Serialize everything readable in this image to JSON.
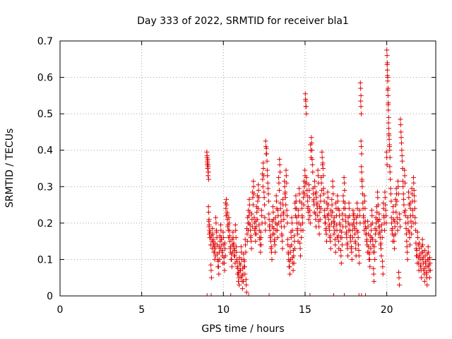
{
  "chart_data": {
    "type": "scatter",
    "title": "Day 333 of 2022, SRMTID for receiver bla1",
    "xlabel": "GPS time / hours",
    "ylabel": "SRMTID / TECUs",
    "xlim": [
      0,
      23
    ],
    "ylim": [
      0,
      0.7
    ],
    "xticks": [
      0,
      5,
      10,
      15,
      20
    ],
    "yticks": [
      0,
      0.1,
      0.2,
      0.3,
      0.4,
      0.5,
      0.6,
      0.7
    ],
    "xtick_labels": [
      "0",
      "5",
      "10",
      "15",
      "20"
    ],
    "ytick_labels": [
      "0",
      "0.1",
      "0.2",
      "0.3",
      "0.4",
      "0.5",
      "0.6",
      "0.7"
    ],
    "marker": "+",
    "marker_color": "#e00000",
    "grid": true,
    "series": [
      {
        "name": "SRMTID",
        "points": [
          [
            9.0,
            0.38
          ],
          [
            9.02,
            0.37
          ],
          [
            9.04,
            0.35
          ],
          [
            9.06,
            0.36
          ],
          [
            9.08,
            0.34
          ],
          [
            9.1,
            0.23
          ],
          [
            9.12,
            0.19
          ],
          [
            9.15,
            0.18
          ],
          [
            9.2,
            0.16
          ],
          [
            9.25,
            0.07
          ],
          [
            9.3,
            0.15
          ],
          [
            9.35,
            0.17
          ],
          [
            9.4,
            0.14
          ],
          [
            9.45,
            0.12
          ],
          [
            9.5,
            0.13
          ],
          [
            9.55,
            0.2
          ],
          [
            9.6,
            0.16
          ],
          [
            9.65,
            0.1
          ],
          [
            9.7,
            0.08
          ],
          [
            9.75,
            0.12
          ],
          [
            9.8,
            0.15
          ],
          [
            9.85,
            0.18
          ],
          [
            9.9,
            0.14
          ],
          [
            9.95,
            0.11
          ],
          [
            10.0,
            0.16
          ],
          [
            10.05,
            0.09
          ],
          [
            10.1,
            0.13
          ],
          [
            10.15,
            0.24
          ],
          [
            10.2,
            0.25
          ],
          [
            10.25,
            0.21
          ],
          [
            10.3,
            0.18
          ],
          [
            10.35,
            0.2
          ],
          [
            10.4,
            0.15
          ],
          [
            10.45,
            0.12
          ],
          [
            10.5,
            0.1
          ],
          [
            10.55,
            0.14
          ],
          [
            10.6,
            0.16
          ],
          [
            10.65,
            0.13
          ],
          [
            10.7,
            0.11
          ],
          [
            10.75,
            0.18
          ],
          [
            10.8,
            0.12
          ],
          [
            10.85,
            0.08
          ],
          [
            10.9,
            0.06
          ],
          [
            10.95,
            0.05
          ],
          [
            11.0,
            0.09
          ],
          [
            11.05,
            0.07
          ],
          [
            11.1,
            0.12
          ],
          [
            11.15,
            0.04
          ],
          [
            11.2,
            0.06
          ],
          [
            11.25,
            0.1
          ],
          [
            11.3,
            0.08
          ],
          [
            11.35,
            0.14
          ],
          [
            11.4,
            0.03
          ],
          [
            11.45,
            0.17
          ],
          [
            11.5,
            0.2
          ],
          [
            11.55,
            0.22
          ],
          [
            11.6,
            0.25
          ],
          [
            11.65,
            0.18
          ],
          [
            11.7,
            0.15
          ],
          [
            11.75,
            0.21
          ],
          [
            11.8,
            0.27
          ],
          [
            11.85,
            0.3
          ],
          [
            11.9,
            0.2
          ],
          [
            11.95,
            0.17
          ],
          [
            12.0,
            0.19
          ],
          [
            12.05,
            0.23
          ],
          [
            12.1,
            0.26
          ],
          [
            12.15,
            0.29
          ],
          [
            12.2,
            0.18
          ],
          [
            12.25,
            0.14
          ],
          [
            12.3,
            0.16
          ],
          [
            12.35,
            0.22
          ],
          [
            12.4,
            0.32
          ],
          [
            12.45,
            0.35
          ],
          [
            12.5,
            0.27
          ],
          [
            12.55,
            0.2
          ],
          [
            12.6,
            0.41
          ],
          [
            12.65,
            0.39
          ],
          [
            12.7,
            0.33
          ],
          [
            12.75,
            0.28
          ],
          [
            12.8,
            0.21
          ],
          [
            12.85,
            0.18
          ],
          [
            12.9,
            0.15
          ],
          [
            12.95,
            0.12
          ],
          [
            13.0,
            0.19
          ],
          [
            13.05,
            0.23
          ],
          [
            13.1,
            0.17
          ],
          [
            13.15,
            0.14
          ],
          [
            13.2,
            0.2
          ],
          [
            13.25,
            0.26
          ],
          [
            13.3,
            0.18
          ],
          [
            13.35,
            0.22
          ],
          [
            13.4,
            0.31
          ],
          [
            13.45,
            0.36
          ],
          [
            13.5,
            0.24
          ],
          [
            13.55,
            0.19
          ],
          [
            13.6,
            0.15
          ],
          [
            13.65,
            0.25
          ],
          [
            13.7,
            0.21
          ],
          [
            13.75,
            0.3
          ],
          [
            13.8,
            0.27
          ],
          [
            13.85,
            0.33
          ],
          [
            13.9,
            0.22
          ],
          [
            13.95,
            0.14
          ],
          [
            14.0,
            0.1
          ],
          [
            14.05,
            0.08
          ],
          [
            14.1,
            0.12
          ],
          [
            14.15,
            0.16
          ],
          [
            14.2,
            0.2
          ],
          [
            14.25,
            0.09
          ],
          [
            14.3,
            0.11
          ],
          [
            14.35,
            0.15
          ],
          [
            14.4,
            0.24
          ],
          [
            14.45,
            0.26
          ],
          [
            14.5,
            0.2
          ],
          [
            14.55,
            0.17
          ],
          [
            14.6,
            0.22
          ],
          [
            14.65,
            0.28
          ],
          [
            14.7,
            0.13
          ],
          [
            14.75,
            0.18
          ],
          [
            14.8,
            0.24
          ],
          [
            14.85,
            0.2
          ],
          [
            14.9,
            0.27
          ],
          [
            14.95,
            0.3
          ],
          [
            15.0,
            0.33
          ],
          [
            15.03,
            0.54
          ],
          [
            15.06,
            0.52
          ],
          [
            15.1,
            0.31
          ],
          [
            15.15,
            0.26
          ],
          [
            15.2,
            0.23
          ],
          [
            15.25,
            0.29
          ],
          [
            15.3,
            0.22
          ],
          [
            15.35,
            0.4
          ],
          [
            15.4,
            0.42
          ],
          [
            15.45,
            0.36
          ],
          [
            15.5,
            0.28
          ],
          [
            15.55,
            0.25
          ],
          [
            15.6,
            0.3
          ],
          [
            15.65,
            0.21
          ],
          [
            15.7,
            0.27
          ],
          [
            15.75,
            0.24
          ],
          [
            15.8,
            0.33
          ],
          [
            15.85,
            0.19
          ],
          [
            15.9,
            0.23
          ],
          [
            15.95,
            0.26
          ],
          [
            16.0,
            0.31
          ],
          [
            16.05,
            0.38
          ],
          [
            16.1,
            0.35
          ],
          [
            16.15,
            0.28
          ],
          [
            16.2,
            0.22
          ],
          [
            16.25,
            0.2
          ],
          [
            16.3,
            0.17
          ],
          [
            16.35,
            0.24
          ],
          [
            16.4,
            0.27
          ],
          [
            16.45,
            0.21
          ],
          [
            16.5,
            0.18
          ],
          [
            16.55,
            0.15
          ],
          [
            16.6,
            0.22
          ],
          [
            16.65,
            0.25
          ],
          [
            16.7,
            0.3
          ],
          [
            16.75,
            0.19
          ],
          [
            16.8,
            0.2
          ],
          [
            16.85,
            0.14
          ],
          [
            16.9,
            0.24
          ],
          [
            16.95,
            0.18
          ],
          [
            17.0,
            0.26
          ],
          [
            17.05,
            0.15
          ],
          [
            17.1,
            0.22
          ],
          [
            17.15,
            0.18
          ],
          [
            17.2,
            0.11
          ],
          [
            17.25,
            0.16
          ],
          [
            17.3,
            0.21
          ],
          [
            17.35,
            0.26
          ],
          [
            17.4,
            0.31
          ],
          [
            17.45,
            0.24
          ],
          [
            17.5,
            0.19
          ],
          [
            17.55,
            0.16
          ],
          [
            17.6,
            0.13
          ],
          [
            17.65,
            0.2
          ],
          [
            17.7,
            0.24
          ],
          [
            17.75,
            0.18
          ],
          [
            17.8,
            0.15
          ],
          [
            17.85,
            0.12
          ],
          [
            17.9,
            0.18
          ],
          [
            17.95,
            0.22
          ],
          [
            18.0,
            0.21
          ],
          [
            18.05,
            0.17
          ],
          [
            18.1,
            0.13
          ],
          [
            18.15,
            0.2
          ],
          [
            18.2,
            0.24
          ],
          [
            18.25,
            0.16
          ],
          [
            18.3,
            0.11
          ],
          [
            18.35,
            0.22
          ],
          [
            18.4,
            0.57
          ],
          [
            18.42,
            0.52
          ],
          [
            18.44,
            0.41
          ],
          [
            18.46,
            0.34
          ],
          [
            18.5,
            0.3
          ],
          [
            18.55,
            0.24
          ],
          [
            18.6,
            0.2
          ],
          [
            18.65,
            0.26
          ],
          [
            18.7,
            0.19
          ],
          [
            18.75,
            0.17
          ],
          [
            18.8,
            0.14
          ],
          [
            18.85,
            0.19
          ],
          [
            18.9,
            0.12
          ],
          [
            18.95,
            0.1
          ],
          [
            19.0,
            0.15
          ],
          [
            19.05,
            0.18
          ],
          [
            19.1,
            0.22
          ],
          [
            19.15,
            0.14
          ],
          [
            19.2,
            0.06
          ],
          [
            19.25,
            0.12
          ],
          [
            19.3,
            0.17
          ],
          [
            19.35,
            0.2
          ],
          [
            19.4,
            0.23
          ],
          [
            19.45,
            0.27
          ],
          [
            19.5,
            0.19
          ],
          [
            19.55,
            0.21
          ],
          [
            19.6,
            0.16
          ],
          [
            19.65,
            0.13
          ],
          [
            19.7,
            0.18
          ],
          [
            19.75,
            0.08
          ],
          [
            19.8,
            0.24
          ],
          [
            19.85,
            0.2
          ],
          [
            19.9,
            0.27
          ],
          [
            19.95,
            0.22
          ],
          [
            20.0,
            0.38
          ],
          [
            20.02,
            0.66
          ],
          [
            20.04,
            0.62
          ],
          [
            20.06,
            0.59
          ],
          [
            20.08,
            0.55
          ],
          [
            20.1,
            0.51
          ],
          [
            20.12,
            0.46
          ],
          [
            20.15,
            0.43
          ],
          [
            20.18,
            0.4
          ],
          [
            20.2,
            0.34
          ],
          [
            20.25,
            0.28
          ],
          [
            20.3,
            0.2
          ],
          [
            20.35,
            0.17
          ],
          [
            20.4,
            0.23
          ],
          [
            20.45,
            0.15
          ],
          [
            20.5,
            0.19
          ],
          [
            20.55,
            0.25
          ],
          [
            20.6,
            0.28
          ],
          [
            20.65,
            0.2
          ],
          [
            20.7,
            0.3
          ],
          [
            20.75,
            0.05
          ],
          [
            20.8,
            0.21
          ],
          [
            20.85,
            0.47
          ],
          [
            20.9,
            0.42
          ],
          [
            20.95,
            0.37
          ],
          [
            21.0,
            0.3
          ],
          [
            21.05,
            0.25
          ],
          [
            21.1,
            0.33
          ],
          [
            21.15,
            0.22
          ],
          [
            21.2,
            0.17
          ],
          [
            21.25,
            0.12
          ],
          [
            21.3,
            0.2
          ],
          [
            21.35,
            0.27
          ],
          [
            21.4,
            0.16
          ],
          [
            21.45,
            0.24
          ],
          [
            21.5,
            0.19
          ],
          [
            21.55,
            0.28
          ],
          [
            21.6,
            0.22
          ],
          [
            21.65,
            0.31
          ],
          [
            21.7,
            0.26
          ],
          [
            21.75,
            0.2
          ],
          [
            21.8,
            0.13
          ],
          [
            21.85,
            0.11
          ],
          [
            21.9,
            0.16
          ],
          [
            21.95,
            0.09
          ],
          [
            22.0,
            0.13
          ],
          [
            22.05,
            0.1
          ],
          [
            22.1,
            0.07
          ],
          [
            22.15,
            0.12
          ],
          [
            22.2,
            0.14
          ],
          [
            22.25,
            0.09
          ],
          [
            22.3,
            0.06
          ],
          [
            22.35,
            0.11
          ],
          [
            22.4,
            0.08
          ],
          [
            22.45,
            0.05
          ],
          [
            22.5,
            0.1
          ],
          [
            22.55,
            0.12
          ],
          [
            22.6,
            0.07
          ],
          [
            22.65,
            0.09
          ]
        ]
      }
    ],
    "zero_points_x": [
      9.0,
      9.25,
      10.45,
      11.55,
      12.8,
      15.3,
      16.75,
      17.4,
      18.3,
      18.45,
      18.7
    ]
  }
}
